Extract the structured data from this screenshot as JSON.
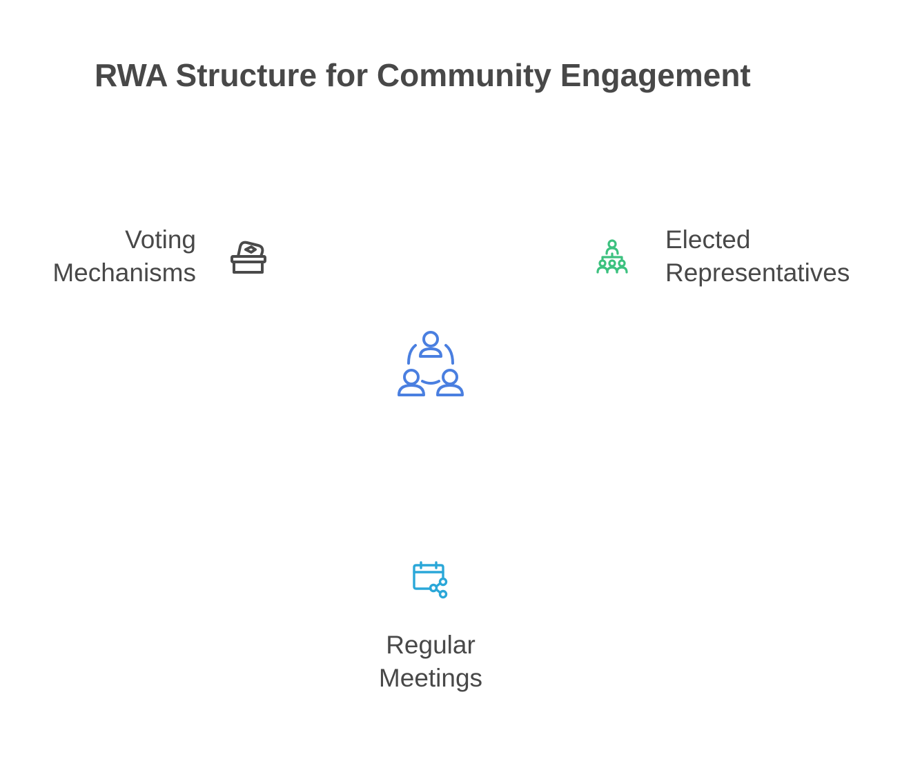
{
  "title": "RWA Structure for Community Engagement",
  "center": {
    "icon": "community-group-icon",
    "color": "#4A7FE0"
  },
  "nodes": [
    {
      "id": "voting",
      "label_lines": [
        "Voting",
        "Mechanisms"
      ],
      "icon": "ballot-box-icon",
      "color": "#4A4A4A"
    },
    {
      "id": "elected",
      "label_lines": [
        "Elected",
        "Representatives"
      ],
      "icon": "hierarchy-people-icon",
      "color": "#3CC17F"
    },
    {
      "id": "meetings",
      "label_lines": [
        "Regular",
        "Meetings"
      ],
      "icon": "calendar-share-icon",
      "color": "#2AA7D8"
    }
  ]
}
